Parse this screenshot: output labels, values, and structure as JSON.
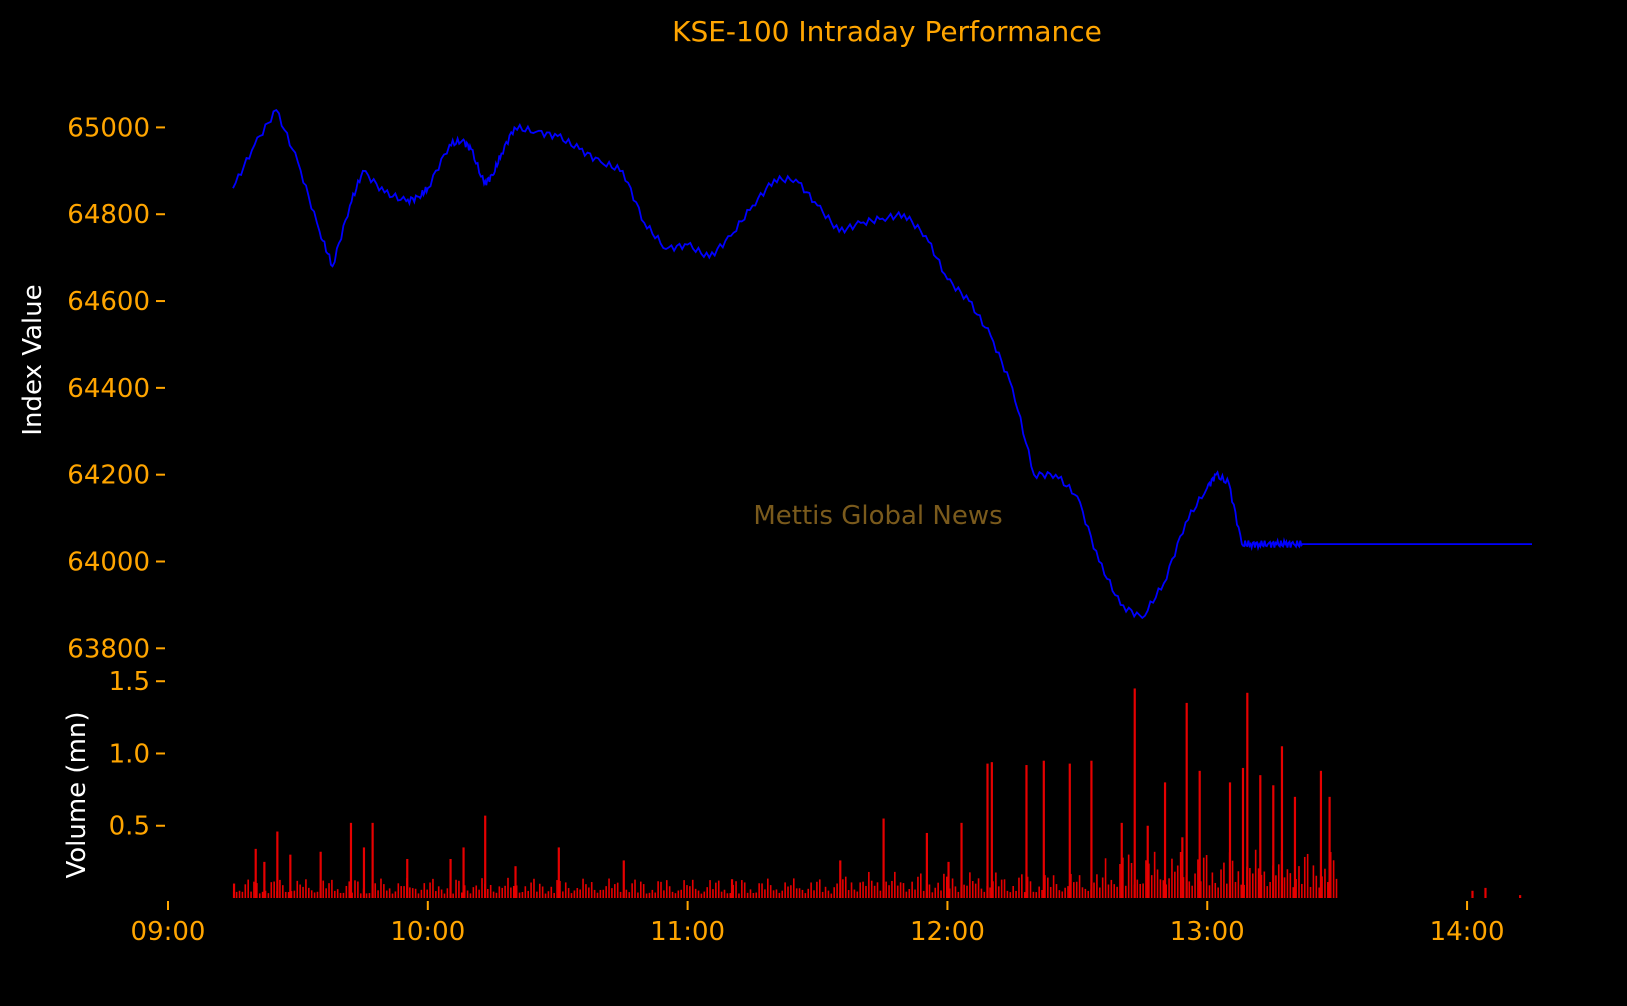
{
  "title": "KSE-100 Intraday Performance",
  "watermark": "Mettis Global News",
  "colors": {
    "background": "#000000",
    "accent": "#ffa500",
    "index_line": "#0000ff",
    "volume_bar": "#e60000",
    "watermark": "#7a5a1c",
    "axis_label": "#ffffff"
  },
  "chart_data": [
    {
      "type": "line",
      "ylabel": "Index Value",
      "ylim": [
        63780,
        65100
      ],
      "yticks": [
        63800,
        64000,
        64200,
        64400,
        64600,
        64800,
        65000
      ],
      "ytick_labels": [
        "63800",
        "64000",
        "64200",
        "64400",
        "64600",
        "64800",
        "65000"
      ],
      "xlim_hours": [
        9.0,
        14.3
      ],
      "series": [
        {
          "x_time": [
            "09:15",
            "09:20",
            "09:25",
            "09:30",
            "09:35",
            "09:38",
            "09:42",
            "09:45",
            "09:50",
            "09:55",
            "09:58",
            "10:00",
            "10:05",
            "10:08",
            "10:10",
            "10:13",
            "10:15",
            "10:17",
            "10:20",
            "10:25",
            "10:30",
            "10:35",
            "10:40",
            "10:45",
            "10:50",
            "10:55",
            "11:00",
            "11:05",
            "11:10",
            "11:15",
            "11:20",
            "11:25",
            "11:30",
            "11:35",
            "11:40",
            "11:45",
            "11:50",
            "11:55",
            "12:00",
            "12:05",
            "12:10",
            "12:15",
            "12:20",
            "12:25",
            "12:30",
            "12:35",
            "12:40",
            "12:45",
            "12:50",
            "12:55",
            "13:00",
            "13:02",
            "13:05",
            "13:08",
            "13:10",
            "13:12",
            "13:14",
            "13:16",
            "13:18",
            "13:20",
            "13:22",
            "13:25",
            "13:28",
            "13:30",
            "13:31",
            "13:32",
            "13:45",
            "14:15"
          ],
          "values": [
            64860,
            64960,
            65040,
            64920,
            64760,
            64680,
            64820,
            64900,
            64850,
            64830,
            64840,
            64860,
            64960,
            64970,
            64950,
            64870,
            64890,
            64940,
            65000,
            64990,
            64980,
            64950,
            64920,
            64900,
            64780,
            64720,
            64730,
            64700,
            64750,
            64820,
            64880,
            64880,
            64820,
            64760,
            64780,
            64790,
            64800,
            64750,
            64650,
            64600,
            64520,
            64400,
            64200,
            64200,
            64150,
            64000,
            63900,
            63870,
            63950,
            64090,
            64170,
            64200,
            64180,
            64040,
            64040,
            64040,
            64040,
            64040,
            64040,
            64040,
            64040,
            64040,
            64040,
            64040,
            64040,
            64040,
            64040,
            64040
          ]
        }
      ]
    },
    {
      "type": "bar",
      "ylabel": "Volume (mn)",
      "ylim": [
        0,
        1.55
      ],
      "yticks": [
        0.5,
        1.0,
        1.5
      ],
      "ytick_labels": [
        "0.5",
        "1.0",
        "1.5"
      ],
      "xticks": [
        "09:00",
        "10:00",
        "11:00",
        "12:00",
        "13:00",
        "14:00"
      ],
      "spikes": [
        {
          "t": "09:15",
          "v": 0.1
        },
        {
          "t": "09:20",
          "v": 0.34
        },
        {
          "t": "09:22",
          "v": 0.25
        },
        {
          "t": "09:25",
          "v": 0.46
        },
        {
          "t": "09:28",
          "v": 0.3
        },
        {
          "t": "09:35",
          "v": 0.32
        },
        {
          "t": "09:42",
          "v": 0.52
        },
        {
          "t": "09:45",
          "v": 0.35
        },
        {
          "t": "09:47",
          "v": 0.52
        },
        {
          "t": "09:55",
          "v": 0.27
        },
        {
          "t": "10:05",
          "v": 0.27
        },
        {
          "t": "10:08",
          "v": 0.35
        },
        {
          "t": "10:13",
          "v": 0.57
        },
        {
          "t": "10:20",
          "v": 0.22
        },
        {
          "t": "10:30",
          "v": 0.35
        },
        {
          "t": "10:45",
          "v": 0.26
        },
        {
          "t": "11:10",
          "v": 0.13
        },
        {
          "t": "11:35",
          "v": 0.26
        },
        {
          "t": "11:45",
          "v": 0.55
        },
        {
          "t": "11:55",
          "v": 0.45
        },
        {
          "t": "12:00",
          "v": 0.25
        },
        {
          "t": "12:03",
          "v": 0.52
        },
        {
          "t": "12:09",
          "v": 0.93
        },
        {
          "t": "12:10",
          "v": 0.94
        },
        {
          "t": "12:18",
          "v": 0.92
        },
        {
          "t": "12:22",
          "v": 0.95
        },
        {
          "t": "12:28",
          "v": 0.93
        },
        {
          "t": "12:33",
          "v": 0.95
        },
        {
          "t": "12:40",
          "v": 0.52
        },
        {
          "t": "12:43",
          "v": 1.45
        },
        {
          "t": "12:46",
          "v": 0.5
        },
        {
          "t": "12:50",
          "v": 0.8
        },
        {
          "t": "12:54",
          "v": 0.42
        },
        {
          "t": "12:55",
          "v": 1.35
        },
        {
          "t": "12:58",
          "v": 0.88
        },
        {
          "t": "13:05",
          "v": 0.8
        },
        {
          "t": "13:08",
          "v": 0.9
        },
        {
          "t": "13:09",
          "v": 1.42
        },
        {
          "t": "13:12",
          "v": 0.85
        },
        {
          "t": "13:15",
          "v": 0.78
        },
        {
          "t": "13:17",
          "v": 1.05
        },
        {
          "t": "13:20",
          "v": 0.7
        },
        {
          "t": "13:26",
          "v": 0.88
        },
        {
          "t": "13:28",
          "v": 0.7
        },
        {
          "t": "14:01",
          "v": 0.05
        },
        {
          "t": "14:04",
          "v": 0.07
        },
        {
          "t": "14:12",
          "v": 0.02
        }
      ]
    }
  ]
}
